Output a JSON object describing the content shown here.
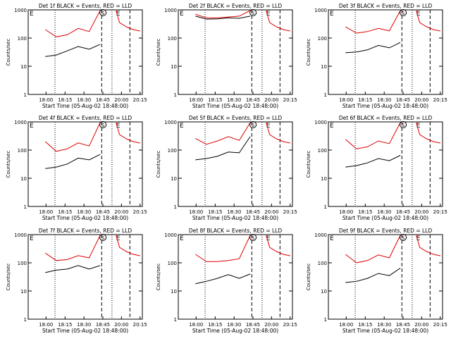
{
  "x_ticks": [
    "18:00",
    "18:15",
    "18:30",
    "18:45",
    "20:00",
    "20:15"
  ],
  "y_ticks": [
    "1",
    "10",
    "100",
    "1000"
  ],
  "xlabel": "Start Time (05-Aug-02 18:48:00)",
  "ylabel": "Counts/sec",
  "markers": {
    "E": "E",
    "S": "S"
  },
  "colors": {
    "events": "#000000",
    "lld": "#e00000"
  },
  "chart_data": [
    {
      "type": "line",
      "title": "Det 1f BLACK = Events, RED = LLD",
      "yscale": "log",
      "ylim": [
        1,
        1000
      ],
      "series": [
        {
          "key": "events",
          "x": [
            0,
            0.2,
            0.4,
            0.6,
            0.8,
            1.0
          ],
          "y": [
            22,
            25,
            35,
            50,
            40,
            60
          ]
        },
        {
          "key": "lld",
          "x": [
            0,
            0.2,
            0.4,
            0.6,
            0.8,
            1.0
          ],
          "y": [
            200,
            110,
            130,
            220,
            170,
            1000
          ]
        }
      ]
    },
    {
      "type": "line",
      "title": "Det 2f BLACK = Events, RED = LLD",
      "yscale": "log",
      "ylim": [
        1,
        1000
      ],
      "series": [
        {
          "key": "events",
          "x": [
            0,
            0.2,
            0.4,
            0.6,
            0.8,
            1.0
          ],
          "y": [
            600,
            470,
            480,
            520,
            500,
            600
          ]
        },
        {
          "key": "lld",
          "x": [
            0,
            0.2,
            0.4,
            0.6,
            0.8,
            1.0
          ],
          "y": [
            700,
            520,
            520,
            560,
            600,
            1000
          ]
        }
      ]
    },
    {
      "type": "line",
      "title": "Det 3f BLACK = Events, RED = LLD",
      "yscale": "log",
      "ylim": [
        1,
        1000
      ],
      "series": [
        {
          "key": "events",
          "x": [
            0,
            0.2,
            0.4,
            0.6,
            0.8,
            1.0
          ],
          "y": [
            30,
            32,
            38,
            55,
            45,
            70
          ]
        },
        {
          "key": "lld",
          "x": [
            0,
            0.2,
            0.4,
            0.6,
            0.8,
            1.0
          ],
          "y": [
            250,
            150,
            170,
            220,
            180,
            1000
          ]
        }
      ]
    },
    {
      "type": "line",
      "title": "Det 4f BLACK = Events, RED = LLD",
      "yscale": "log",
      "ylim": [
        1,
        1000
      ],
      "series": [
        {
          "key": "events",
          "x": [
            0,
            0.2,
            0.4,
            0.6,
            0.8,
            1.0
          ],
          "y": [
            22,
            25,
            32,
            52,
            45,
            70
          ]
        },
        {
          "key": "lld",
          "x": [
            0,
            0.2,
            0.4,
            0.6,
            0.8,
            1.0
          ],
          "y": [
            200,
            90,
            110,
            180,
            140,
            1000
          ]
        }
      ]
    },
    {
      "type": "line",
      "title": "Det 5f BLACK = Events, RED = LLD",
      "yscale": "log",
      "ylim": [
        1,
        1000
      ],
      "series": [
        {
          "key": "events",
          "x": [
            0,
            0.2,
            0.4,
            0.6,
            0.8,
            1.0
          ],
          "y": [
            45,
            50,
            60,
            85,
            80,
            300
          ]
        },
        {
          "key": "lld",
          "x": [
            0,
            0.2,
            0.4,
            0.6,
            0.8,
            1.0
          ],
          "y": [
            260,
            160,
            210,
            300,
            220,
            1000
          ]
        }
      ]
    },
    {
      "type": "line",
      "title": "Det 6f BLACK = Events, RED = LLD",
      "yscale": "log",
      "ylim": [
        1,
        1000
      ],
      "series": [
        {
          "key": "events",
          "x": [
            0,
            0.2,
            0.4,
            0.6,
            0.8,
            1.0
          ],
          "y": [
            25,
            28,
            35,
            50,
            42,
            65
          ]
        },
        {
          "key": "lld",
          "x": [
            0,
            0.2,
            0.4,
            0.6,
            0.8,
            1.0
          ],
          "y": [
            240,
            110,
            130,
            210,
            170,
            1000
          ]
        }
      ]
    },
    {
      "type": "line",
      "title": "Det 7f BLACK = Events, RED = LLD",
      "yscale": "log",
      "ylim": [
        1,
        1000
      ],
      "series": [
        {
          "key": "events",
          "x": [
            0,
            0.2,
            0.4,
            0.6,
            0.8,
            1.0
          ],
          "y": [
            45,
            55,
            60,
            80,
            60,
            80
          ]
        },
        {
          "key": "lld",
          "x": [
            0,
            0.2,
            0.4,
            0.6,
            0.8,
            1.0
          ],
          "y": [
            220,
            120,
            130,
            180,
            150,
            1000
          ]
        }
      ]
    },
    {
      "type": "line",
      "title": "Det 8f BLACK = Events, RED = LLD",
      "yscale": "log",
      "ylim": [
        1,
        1000
      ],
      "series": [
        {
          "key": "events",
          "x": [
            0,
            0.2,
            0.4,
            0.6,
            0.8,
            1.0
          ],
          "y": [
            18,
            22,
            28,
            38,
            28,
            40
          ]
        },
        {
          "key": "lld",
          "x": [
            0,
            0.2,
            0.4,
            0.6,
            0.8,
            1.0
          ],
          "y": [
            200,
            110,
            110,
            120,
            140,
            1000
          ]
        }
      ]
    },
    {
      "type": "line",
      "title": "Det 9f BLACK = Events, RED = LLD",
      "yscale": "log",
      "ylim": [
        1,
        1000
      ],
      "series": [
        {
          "key": "events",
          "x": [
            0,
            0.2,
            0.4,
            0.6,
            0.8,
            1.0
          ],
          "y": [
            20,
            22,
            28,
            42,
            35,
            65
          ]
        },
        {
          "key": "lld",
          "x": [
            0,
            0.2,
            0.4,
            0.6,
            0.8,
            1.0
          ],
          "y": [
            200,
            100,
            120,
            190,
            150,
            1000
          ]
        }
      ]
    }
  ]
}
